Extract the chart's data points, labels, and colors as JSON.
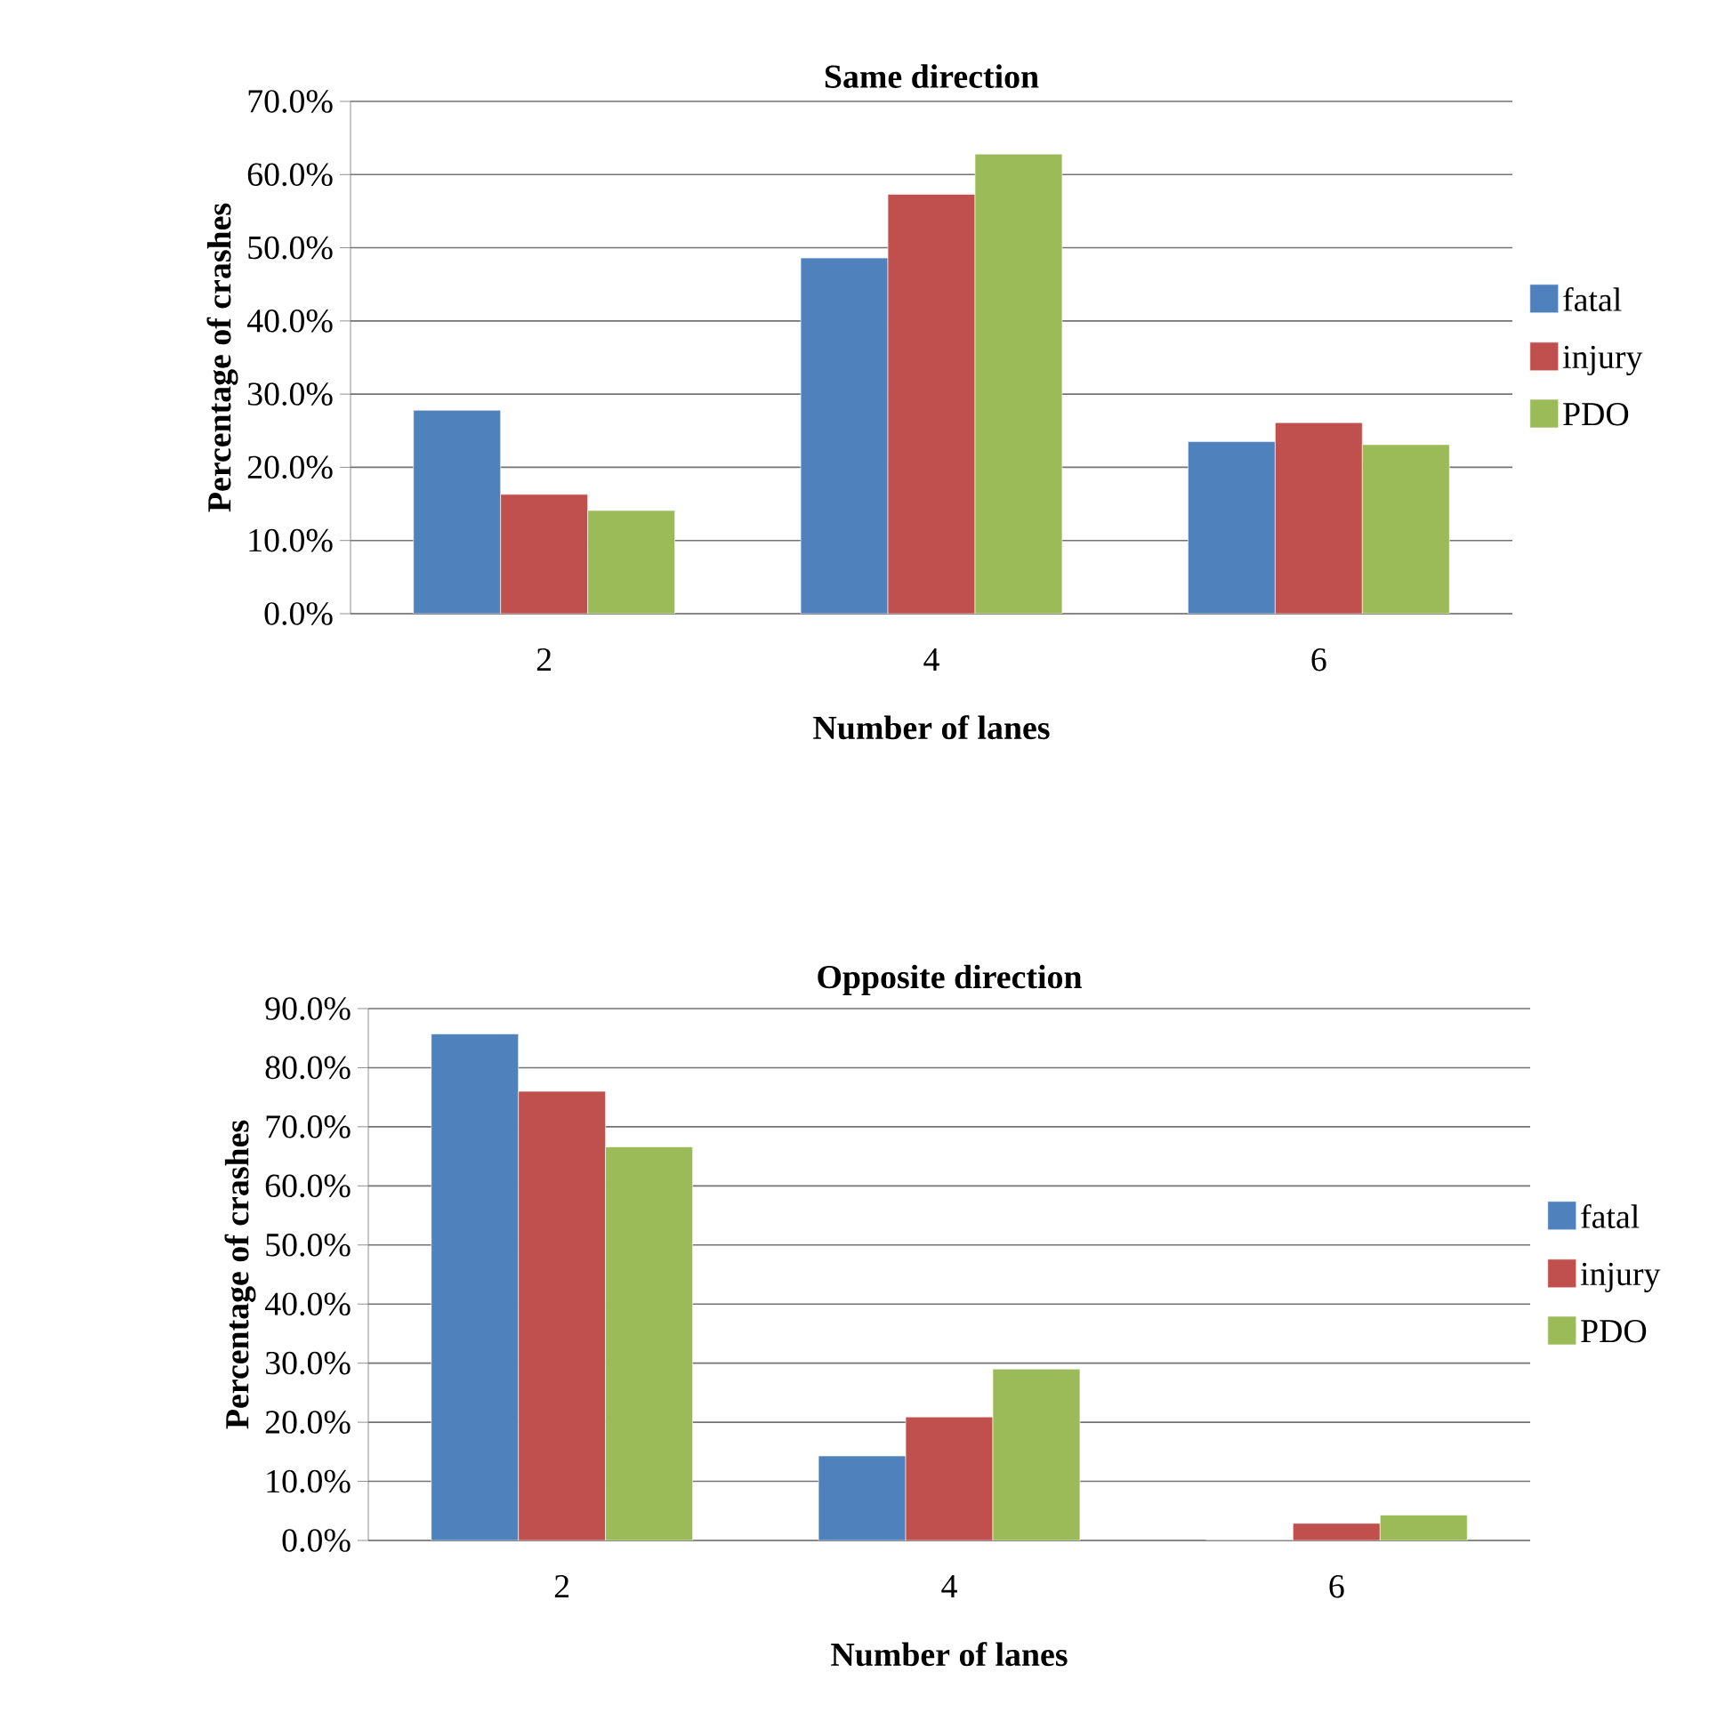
{
  "chart_data": [
    {
      "type": "bar",
      "title": "Same direction",
      "xlabel": "Number of lanes",
      "ylabel": "Percentage of crashes",
      "categories": [
        "2",
        "4",
        "6"
      ],
      "series": [
        {
          "name": "fatal",
          "color": "#4f81bd",
          "values": [
            27.8,
            48.6,
            23.5
          ]
        },
        {
          "name": "injury",
          "color": "#c0504d",
          "values": [
            16.3,
            57.3,
            26.1
          ]
        },
        {
          "name": "PDO",
          "color": "#9bbb59",
          "values": [
            14.1,
            62.8,
            23.1
          ]
        }
      ],
      "ylim": [
        0,
        70
      ],
      "yticks": [
        {
          "value": 0,
          "label": "0.0%"
        },
        {
          "value": 10,
          "label": "10.0%"
        },
        {
          "value": 20,
          "label": "20.0%"
        },
        {
          "value": 30,
          "label": "30.0%"
        },
        {
          "value": 40,
          "label": "40.0%"
        },
        {
          "value": 50,
          "label": "50.0%"
        },
        {
          "value": 60,
          "label": "60.0%"
        },
        {
          "value": 70,
          "label": "70.0%"
        }
      ],
      "grid": "y",
      "legend": "right"
    },
    {
      "type": "bar",
      "title": "Opposite direction",
      "xlabel": "Number of lanes",
      "ylabel": "Percentage of crashes",
      "categories": [
        "2",
        "4",
        "6"
      ],
      "series": [
        {
          "name": "fatal",
          "color": "#4f81bd",
          "values": [
            85.7,
            14.3,
            0
          ]
        },
        {
          "name": "injury",
          "color": "#c0504d",
          "values": [
            76.0,
            20.9,
            2.9
          ]
        },
        {
          "name": "PDO",
          "color": "#9bbb59",
          "values": [
            66.6,
            29.0,
            4.3
          ]
        }
      ],
      "ylim": [
        0,
        90
      ],
      "yticks": [
        {
          "value": 0,
          "label": "0.0%"
        },
        {
          "value": 10,
          "label": "10.0%"
        },
        {
          "value": 20,
          "label": "20.0%"
        },
        {
          "value": 30,
          "label": "30.0%"
        },
        {
          "value": 40,
          "label": "40.0%"
        },
        {
          "value": 50,
          "label": "50.0%"
        },
        {
          "value": 60,
          "label": "60.0%"
        },
        {
          "value": 70,
          "label": "70.0%"
        },
        {
          "value": 80,
          "label": "80.0%"
        },
        {
          "value": 90,
          "label": "90.0%"
        }
      ],
      "grid": "y",
      "legend": "right"
    }
  ]
}
